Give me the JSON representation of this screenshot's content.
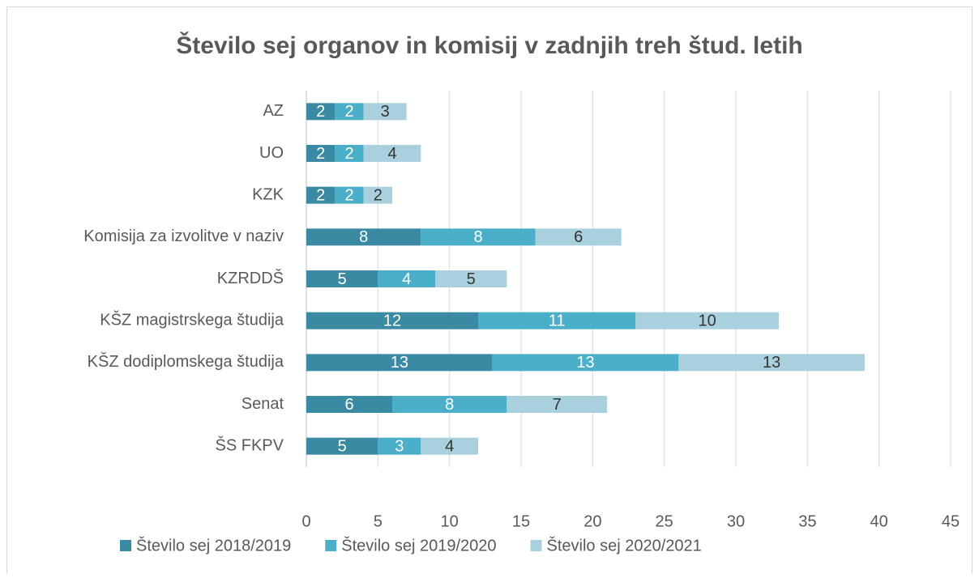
{
  "chart_data": {
    "type": "bar",
    "orientation": "horizontal",
    "stacked": true,
    "title": "Število sej organov in komisij v zadnjih treh štud. letih",
    "categories": [
      "AZ",
      "UO",
      "KZK",
      "Komisija za izvolitve v naziv",
      "KZRDDŠ",
      "KŠZ magistrskega študija",
      "KŠZ dodiplomskega študija",
      "Senat",
      "ŠS FKPV"
    ],
    "series": [
      {
        "name": "Število sej 2018/2019",
        "color": "#3b8aa3",
        "label_color": "#ffffff",
        "values": [
          2,
          2,
          2,
          8,
          5,
          12,
          13,
          6,
          5
        ]
      },
      {
        "name": "Število sej 2019/2020",
        "color": "#4bafca",
        "label_color": "#ffffff",
        "values": [
          2,
          2,
          2,
          8,
          4,
          11,
          13,
          8,
          3
        ]
      },
      {
        "name": "Število sej 2020/2021",
        "color": "#a9d0dd",
        "label_color": "#333333",
        "values": [
          3,
          4,
          2,
          6,
          5,
          10,
          13,
          7,
          4
        ]
      }
    ],
    "xlim": [
      0,
      45
    ],
    "xticks": [
      0,
      5,
      10,
      15,
      20,
      25,
      30,
      35,
      40,
      45
    ],
    "grid": true,
    "legend": "bottom"
  }
}
